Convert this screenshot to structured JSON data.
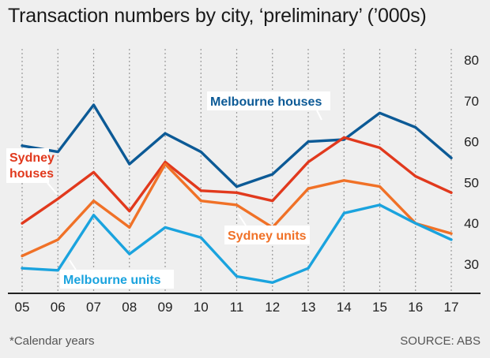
{
  "title": "Transaction numbers by city, ‘preliminary’ (’000s)",
  "footnote": "*Calendar years",
  "source": "SOURCE: ABS",
  "chart_data": {
    "type": "line",
    "title": "Transaction numbers by city, ‘preliminary’ (’000s)",
    "xlabel": "",
    "ylabel": "",
    "x": [
      "05",
      "06",
      "07",
      "08",
      "09",
      "10",
      "11",
      "12",
      "13",
      "14",
      "15",
      "16",
      "17"
    ],
    "yticks": [
      30,
      40,
      50,
      60,
      70,
      80
    ],
    "ylim": [
      25,
      82
    ],
    "grid": "vertical dotted",
    "series": [
      {
        "name": "Melbourne houses",
        "color": "#0c5a96",
        "values": [
          59,
          57.5,
          69,
          54.5,
          62,
          57.5,
          49,
          52,
          60,
          60.5,
          67,
          63.5,
          56
        ]
      },
      {
        "name": "Sydney houses",
        "color": "#e1391d",
        "values": [
          40,
          46,
          52.5,
          43,
          55,
          48,
          47.5,
          45.5,
          55,
          61,
          58.5,
          51.5,
          47.5
        ]
      },
      {
        "name": "Sydney units",
        "color": "#f07127",
        "values": [
          32,
          36,
          45.5,
          39,
          54.5,
          45.5,
          44.5,
          39,
          48.5,
          50.5,
          49,
          40,
          37.5
        ]
      },
      {
        "name": "Melbourne units",
        "color": "#1aa3de",
        "values": [
          29,
          28.5,
          42,
          32.5,
          39,
          36.5,
          27,
          25.5,
          29,
          42.5,
          44.5,
          40,
          36
        ]
      }
    ]
  }
}
